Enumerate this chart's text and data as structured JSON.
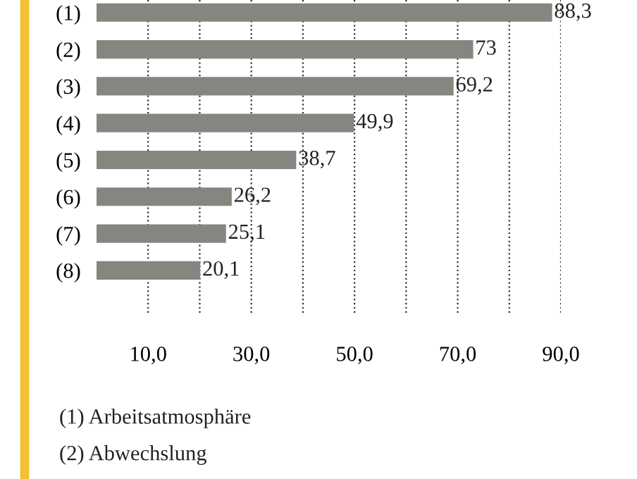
{
  "chart_data": {
    "type": "bar",
    "orientation": "horizontal",
    "categories": [
      "(1)",
      "(2)",
      "(3)",
      "(4)",
      "(5)",
      "(6)",
      "(7)",
      "(8)"
    ],
    "values": [
      88.3,
      73,
      69.2,
      49.9,
      38.7,
      26.2,
      25.1,
      20.1
    ],
    "value_labels": [
      "88,3",
      "73",
      "69,2",
      "49,9",
      "38,7",
      "26,2",
      "25,1",
      "20,1"
    ],
    "color": "#878580",
    "xlim": [
      0,
      90
    ],
    "xticks": [
      {
        "value": 10,
        "label": "10,0"
      },
      {
        "value": 20,
        "label": null
      },
      {
        "value": 30,
        "label": "30,0"
      },
      {
        "value": 40,
        "label": null
      },
      {
        "value": 50,
        "label": "50,0"
      },
      {
        "value": 60,
        "label": null
      },
      {
        "value": 70,
        "label": "70,0"
      },
      {
        "value": 80,
        "label": null
      },
      {
        "value": 90,
        "label": "90,0"
      }
    ],
    "grid": "x",
    "line_style": "dotted",
    "annotations": [
      "(1) Arbeitsatmosphäre",
      "(2) Abwechslung"
    ]
  }
}
